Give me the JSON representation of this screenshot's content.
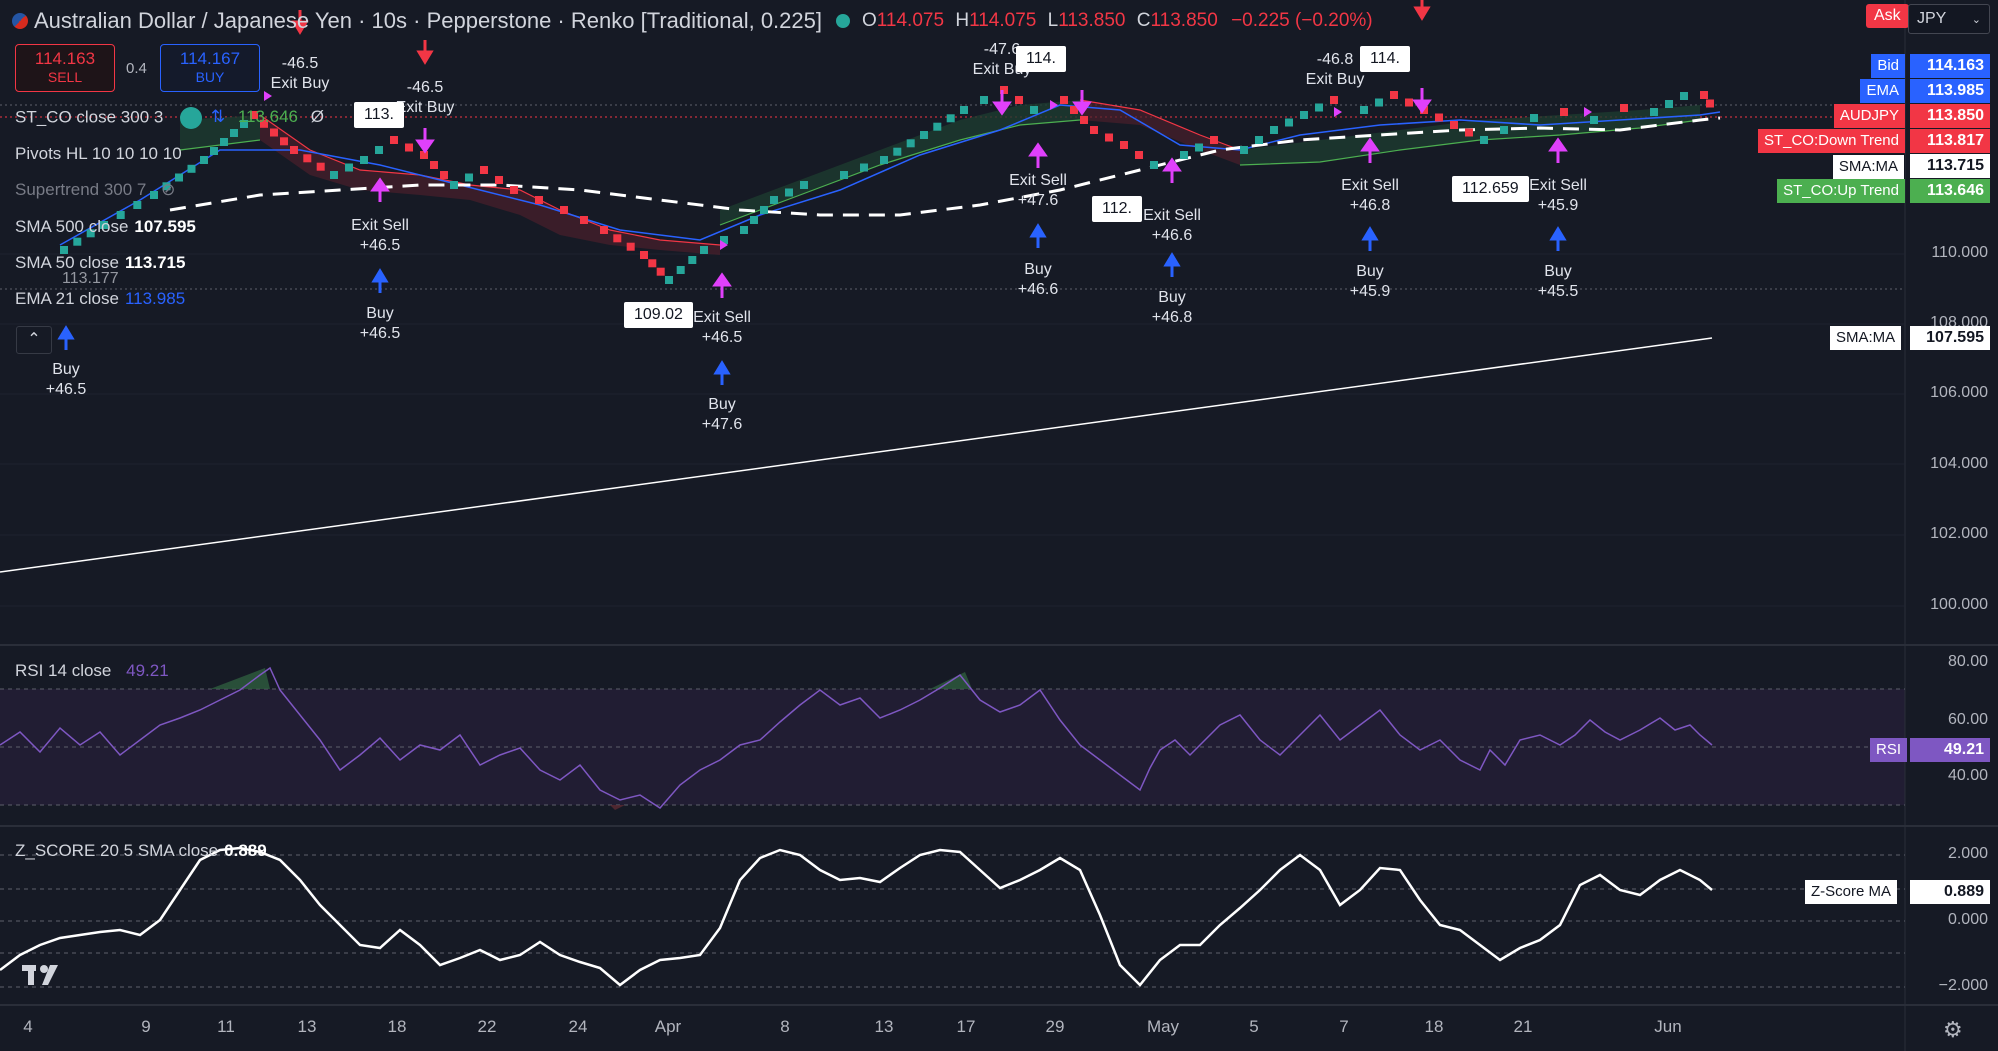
{
  "header": {
    "symbol_title": "Australian Dollar / Japanese Yen · 10s · Pepperstone · Renko [Traditional, 0.225]",
    "open_label": "O",
    "open": "114.075",
    "high_label": "H",
    "high": "114.075",
    "low_label": "L",
    "low": "113.850",
    "close_label": "C",
    "close": "113.850",
    "change": "−0.225 (−0.20%)",
    "ask_label": "Ask",
    "currency": "JPY"
  },
  "trade": {
    "sell_price": "114.163",
    "sell_label": "SELL",
    "spread": "0.4",
    "buy_price": "114.167",
    "buy_label": "BUY"
  },
  "legend": {
    "st_co": "ST_CO close 300 3",
    "st_co_val": "113.646",
    "st_co_extra": "Ø",
    "pivots": "Pivots HL 10 10 10 10",
    "supertrend": "Supertrend 300 7",
    "sma500": "SMA 500 close",
    "sma500_val": "107.595",
    "sma50": "SMA 50 close",
    "sma50_val": "113.715",
    "ema21": "EMA 21 close",
    "ema21_val": "113.985",
    "rsi": "RSI 14 close",
    "rsi_val": "49.21",
    "zscore": "Z_SCORE 20 5 SMA close",
    "zscore_val": "0.889"
  },
  "price_axis": [
    "110.000",
    "108.000",
    "106.000",
    "104.000",
    "102.000",
    "100.000"
  ],
  "price_tags": [
    {
      "label": "Bid",
      "value": "114.163",
      "color": "#2962ff"
    },
    {
      "label": "EMA",
      "value": "113.985",
      "color": "#2962ff"
    },
    {
      "label": "AUDJPY",
      "value": "113.850",
      "color": "#f23645"
    },
    {
      "label": "ST_CO:Down Trend",
      "value": "113.817",
      "color": "#f23645"
    },
    {
      "label": "SMA:MA",
      "value": "113.715",
      "color": "#ffffff"
    },
    {
      "label": "ST_CO:Up Trend",
      "value": "113.646",
      "color": "#4caf50"
    }
  ],
  "sma500_tag": {
    "label": "SMA:MA",
    "value": "107.595"
  },
  "rsi_axis": [
    "80.00",
    "60.00",
    "40.00"
  ],
  "rsi_tag": {
    "label": "RSI",
    "value": "49.21"
  },
  "z_axis": [
    "2.000",
    "0.000",
    "−2.000"
  ],
  "z_tag": {
    "label": "Z-Score MA",
    "value": "0.889"
  },
  "time_axis": [
    "4",
    "9",
    "11",
    "13",
    "18",
    "22",
    "24",
    "Apr",
    "8",
    "13",
    "17",
    "29",
    "May",
    "5",
    "7",
    "18",
    "21",
    "Jun"
  ],
  "buy_markers": [
    {
      "label": "Buy",
      "value": "+46.5"
    },
    {
      "label": "Buy",
      "value": "+46.5"
    },
    {
      "label": "Buy",
      "value": "+47.6"
    },
    {
      "label": "Buy",
      "value": "+46.6"
    },
    {
      "label": "Buy",
      "value": "+46.8"
    },
    {
      "label": "Buy",
      "value": "+45.9"
    },
    {
      "label": "Buy",
      "value": "+45.5"
    }
  ],
  "exit_sell_markers": [
    {
      "label": "Exit Sell",
      "value": "+46.5"
    },
    {
      "label": "Exit Sell",
      "value": "+46.5"
    },
    {
      "label": "Exit Sell",
      "value": "+47.6"
    },
    {
      "label": "Exit Sell",
      "value": "+46.6"
    },
    {
      "label": "Exit Sell",
      "value": "+46.8"
    },
    {
      "label": "Exit Sell",
      "value": "+45.9"
    }
  ],
  "exit_buy_markers": [
    {
      "label": "Exit Buy",
      "value": "-46.5"
    },
    {
      "label": "Exit Buy",
      "value": "-46.5"
    },
    {
      "label": "Exit Buy",
      "value": "-47.6"
    },
    {
      "label": "Exit Buy",
      "value": "-46.8"
    }
  ],
  "pivot_labels": [
    "109.02",
    "112.",
    "112.659",
    "113.",
    "114.",
    "114.",
    "113.177"
  ],
  "colors": {
    "up_brick": "#26a69a",
    "down_brick": "#f23645",
    "background": "#161a25",
    "rsi_line": "#7e57c2",
    "accent_blue": "#2962ff"
  }
}
